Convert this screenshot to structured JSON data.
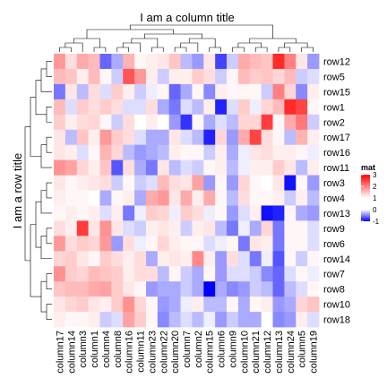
{
  "chart_data": {
    "type": "heatmap",
    "title": "I am a column title",
    "ylabel": "I am a row title",
    "legend": {
      "title": "mat",
      "ticks": [
        3,
        2,
        1,
        0,
        -1
      ],
      "placement": "right",
      "colors": {
        "low": "#0000ff",
        "mid": "#ffffff",
        "high": "#ff0000"
      }
    },
    "columns": [
      "column17",
      "column14",
      "column3",
      "column1",
      "column4",
      "column8",
      "column16",
      "column11",
      "column23",
      "column22",
      "column20",
      "column7",
      "column2",
      "column15",
      "column6",
      "column9",
      "column10",
      "column21",
      "column12",
      "column13",
      "column24",
      "column5",
      "column19"
    ],
    "rows": [
      "row12",
      "row5",
      "row15",
      "row1",
      "row2",
      "row17",
      "row16",
      "row11",
      "row3",
      "row4",
      "row13",
      "row9",
      "row6",
      "row14",
      "row7",
      "row8",
      "row10",
      "row18"
    ],
    "values": [
      [
        1.2,
        0.4,
        1.0,
        0.8,
        -0.9,
        -0.5,
        0.9,
        0.1,
        0.2,
        0.3,
        0.7,
        -0.4,
        -0.6,
        0.3,
        -1.1,
        -0.3,
        1.0,
        0.8,
        0.7,
        2.5,
        1.5,
        0.3,
        -0.6
      ],
      [
        0.8,
        0.7,
        0.2,
        0.8,
        0.1,
        -0.3,
        2.0,
        1.2,
        0.2,
        -0.3,
        0.2,
        0.2,
        0.6,
        0.4,
        -0.3,
        0.1,
        0.8,
        0.6,
        0.7,
        0.5,
        0.8,
        -0.3,
        -0.2
      ],
      [
        -0.8,
        0.3,
        -0.4,
        0.4,
        -0.2,
        0.6,
        0.2,
        -0.3,
        -0.1,
        0.1,
        -0.9,
        -0.5,
        0.1,
        -0.7,
        0.2,
        0.1,
        0.1,
        0.1,
        -0.3,
        1.5,
        0.5,
        -0.7,
        0.2
      ],
      [
        0.8,
        -0.2,
        0.6,
        0.4,
        0.6,
        0.4,
        -0.2,
        -0.2,
        0.4,
        -0.5,
        -0.8,
        -0.2,
        -0.4,
        0.2,
        -1.3,
        -0.2,
        0.6,
        -0.1,
        0.5,
        0.8,
        2.5,
        2.2,
        0.1
      ],
      [
        0.6,
        0.2,
        0.4,
        0.5,
        0.1,
        -0.3,
        0.4,
        0.0,
        0.2,
        0.0,
        -0.6,
        -1.2,
        0.1,
        -0.5,
        -0.2,
        -0.4,
        0.5,
        0.5,
        2.3,
        0.1,
        1.0,
        1.6,
        -0.3
      ],
      [
        0.3,
        -0.4,
        0.7,
        0.2,
        1.2,
        0.6,
        0.4,
        -0.2,
        -0.5,
        -0.5,
        0.3,
        -0.2,
        -0.4,
        -1.3,
        0.5,
        -0.6,
        1.0,
        2.2,
        0.4,
        0.1,
        -0.4,
        0.9,
        0.2
      ],
      [
        0.3,
        0.2,
        -0.2,
        0.1,
        0.9,
        0.5,
        -0.4,
        -0.6,
        -0.5,
        -0.4,
        0.2,
        0.1,
        0.1,
        -0.3,
        0.2,
        -0.5,
        -0.1,
        0.3,
        0.4,
        0.2,
        0.2,
        0.1,
        -0.1
      ],
      [
        1.3,
        1.1,
        0.5,
        0.2,
        0.7,
        -1.0,
        0.4,
        -0.5,
        -0.8,
        0.3,
        -0.4,
        -0.2,
        -0.3,
        0.1,
        0.2,
        -0.4,
        -0.1,
        0.2,
        0.2,
        0.6,
        0.3,
        -0.4,
        0.2
      ],
      [
        0.3,
        0.1,
        0.2,
        0.3,
        0.4,
        -0.3,
        0.1,
        -0.3,
        -0.2,
        0.8,
        0.4,
        0.3,
        1.1,
        -0.6,
        0.1,
        -0.6,
        0.5,
        0.1,
        0.0,
        0.3,
        -1.4,
        0.1,
        -0.6
      ],
      [
        0.2,
        0.1,
        0.1,
        0.0,
        -0.5,
        0.1,
        0.2,
        -0.5,
        1.0,
        1.2,
        0.3,
        1.0,
        0.2,
        1.0,
        0.1,
        -0.4,
        0.4,
        0.1,
        0.1,
        0.2,
        -0.3,
        0.2,
        -0.4
      ],
      [
        0.1,
        0.2,
        0.1,
        0.2,
        -0.2,
        0.2,
        -0.8,
        -0.1,
        0.6,
        0.5,
        -0.1,
        0.6,
        0.4,
        -0.1,
        0.1,
        -0.6,
        -0.2,
        0.2,
        -1.4,
        -1.3,
        0.1,
        -0.5,
        -0.6
      ],
      [
        0.4,
        0.2,
        2.3,
        0.3,
        1.3,
        0.3,
        -0.2,
        -0.3,
        0.2,
        0.3,
        0.2,
        -0.3,
        0.2,
        0.3,
        -0.4,
        -0.8,
        -0.1,
        -0.5,
        0.5,
        -0.8,
        0.1,
        0.1,
        -0.2
      ],
      [
        1.2,
        0.4,
        0.6,
        0.5,
        1.2,
        -0.6,
        0.4,
        -0.1,
        0.1,
        0.5,
        0.2,
        0.1,
        0.1,
        -0.2,
        -0.1,
        0.1,
        -0.8,
        0.3,
        0.2,
        -0.8,
        0.1,
        0.1,
        -0.2
      ],
      [
        0.5,
        0.6,
        0.3,
        0.1,
        0.6,
        0.4,
        0.2,
        0.4,
        -0.5,
        0.2,
        0.3,
        0.2,
        1.4,
        0.2,
        -0.6,
        0.4,
        -0.2,
        -0.8,
        -0.1,
        -1.0,
        0.1,
        -0.3,
        0.1
      ],
      [
        1.3,
        0.6,
        0.5,
        0.8,
        0.7,
        0.6,
        0.2,
        0.4,
        0.4,
        -0.4,
        0.1,
        -0.3,
        -0.5,
        0.1,
        -0.6,
        -0.2,
        -0.2,
        -0.3,
        -0.7,
        -0.9,
        -0.2,
        0.1,
        -0.1
      ],
      [
        0.7,
        0.8,
        0.8,
        1.0,
        1.1,
        0.6,
        0.3,
        0.1,
        -0.6,
        -0.5,
        -0.5,
        -0.3,
        -0.5,
        -1.5,
        -0.5,
        -0.7,
        -0.6,
        -0.3,
        -0.4,
        -0.9,
        -0.4,
        -0.2,
        0.1
      ],
      [
        0.3,
        0.5,
        0.6,
        0.3,
        0.2,
        0.6,
        1.3,
        0.5,
        0.1,
        -0.6,
        -0.5,
        -0.1,
        0.2,
        -0.4,
        -0.4,
        0.1,
        -0.5,
        0.1,
        0.2,
        -0.6,
        -0.5,
        0.5,
        0.7
      ],
      [
        0.2,
        0.1,
        0.1,
        0.2,
        -0.3,
        -0.2,
        1.1,
        0.6,
        0.1,
        -0.7,
        -0.4,
        -0.2,
        -0.4,
        -0.1,
        -0.6,
        -0.3,
        -0.5,
        -0.5,
        0.0,
        -0.7,
        -0.6,
        0.2,
        -0.2
      ]
    ],
    "col_dendrogram": [
      [
        "column17",
        "column14"
      ],
      [
        1,
        "column3"
      ],
      [
        "column1",
        "column4"
      ],
      [
        2,
        3
      ],
      [
        "column8",
        "column16"
      ],
      [
        5,
        "column11"
      ],
      [
        "column23",
        "column22"
      ],
      [
        6,
        7
      ],
      [
        "column20",
        "column7"
      ],
      [
        9,
        "column2"
      ],
      [
        "column15",
        "column6"
      ],
      [
        10,
        11
      ],
      [
        8,
        12
      ],
      [
        "column9",
        "column10"
      ],
      [
        "column21",
        "column12"
      ],
      [
        14,
        15
      ],
      [
        "column13",
        "column24"
      ],
      [
        "column5",
        "column19"
      ],
      [
        17,
        18
      ],
      [
        16,
        19
      ],
      [
        4,
        13
      ],
      [
        21,
        20
      ]
    ],
    "row_dendrogram": [
      [
        "row12",
        "row5"
      ],
      [
        1,
        "row15"
      ],
      [
        "row1",
        "row2"
      ],
      [
        2,
        3
      ],
      [
        "row17",
        "row16"
      ],
      [
        5,
        "row11"
      ],
      [
        4,
        6
      ],
      [
        "row3",
        "row4"
      ],
      [
        8,
        "row13"
      ],
      [
        "row9",
        "row6"
      ],
      [
        10,
        "row14"
      ],
      [
        9,
        11
      ],
      [
        "row7",
        "row8"
      ],
      [
        "row10",
        "row18"
      ],
      [
        13,
        14
      ],
      [
        12,
        15
      ],
      [
        7,
        16
      ]
    ]
  }
}
